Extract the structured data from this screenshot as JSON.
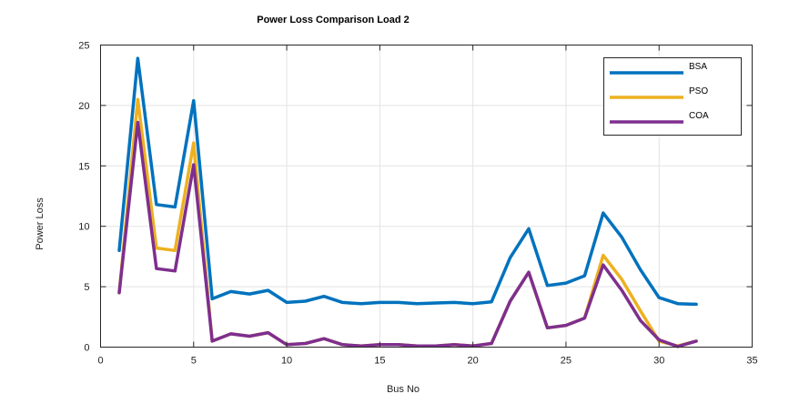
{
  "chart_data": {
    "type": "line",
    "title": "Power Loss Comparison Load 2",
    "xlabel": "Bus No",
    "ylabel": "Power Loss",
    "xlim": [
      0,
      35
    ],
    "ylim": [
      0,
      25
    ],
    "xticks": [
      0,
      5,
      10,
      15,
      20,
      25,
      30,
      35
    ],
    "yticks": [
      0,
      5,
      10,
      15,
      20,
      25
    ],
    "grid": true,
    "legend_position": "top-right",
    "x": [
      1,
      2,
      3,
      4,
      5,
      6,
      7,
      8,
      9,
      10,
      11,
      12,
      13,
      14,
      15,
      16,
      17,
      18,
      19,
      20,
      21,
      22,
      23,
      24,
      25,
      26,
      27,
      28,
      29,
      30,
      31,
      32
    ],
    "series": [
      {
        "name": "BSA",
        "color": "#0072BD",
        "values": [
          8.0,
          23.9,
          11.8,
          11.6,
          20.4,
          4.0,
          4.6,
          4.4,
          4.7,
          3.7,
          3.8,
          4.2,
          3.7,
          3.6,
          3.7,
          3.7,
          3.6,
          3.65,
          3.7,
          3.6,
          3.75,
          7.4,
          9.8,
          5.1,
          5.3,
          5.9,
          11.1,
          9.1,
          6.4,
          4.1,
          3.6,
          3.55
        ]
      },
      {
        "name": "PSO",
        "color": "#EDB120",
        "values": [
          4.5,
          20.5,
          8.2,
          8.0,
          16.9,
          0.5,
          1.1,
          0.9,
          1.2,
          0.2,
          0.3,
          0.7,
          0.2,
          0.1,
          0.2,
          0.2,
          0.1,
          0.1,
          0.2,
          0.1,
          0.3,
          3.8,
          6.2,
          1.6,
          1.8,
          2.4,
          7.6,
          5.6,
          3.0,
          0.5,
          0.1,
          0.5
        ]
      },
      {
        "name": "COA",
        "color": "#7E2F8E",
        "values": [
          4.5,
          18.6,
          6.5,
          6.3,
          15.1,
          0.5,
          1.1,
          0.9,
          1.2,
          0.2,
          0.3,
          0.7,
          0.2,
          0.1,
          0.2,
          0.2,
          0.1,
          0.1,
          0.2,
          0.1,
          0.3,
          3.8,
          6.2,
          1.6,
          1.8,
          2.4,
          6.8,
          4.7,
          2.2,
          0.6,
          0.05,
          0.5
        ]
      }
    ]
  }
}
